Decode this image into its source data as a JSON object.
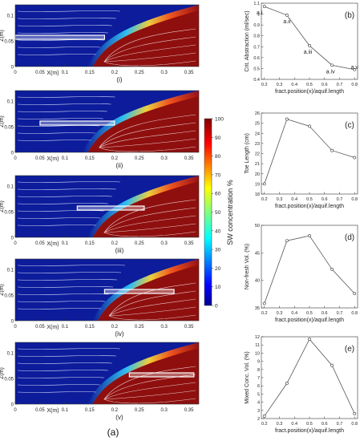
{
  "figure_label": "(a)",
  "colorbar": {
    "label": "SW concentration %",
    "ticks": [
      "100",
      "90",
      "80",
      "70",
      "60",
      "50",
      "40",
      "30",
      "20",
      "10",
      "0"
    ]
  },
  "contour_panels": [
    {
      "label": "(i)",
      "well": [
        0.0,
        0.18
      ]
    },
    {
      "label": "(ii)",
      "well": [
        0.05,
        0.2
      ]
    },
    {
      "label": "(iii)",
      "well": [
        0.125,
        0.26
      ]
    },
    {
      "label": "(iv)",
      "well": [
        0.18,
        0.32
      ]
    },
    {
      "label": "(v)",
      "well": [
        0.23,
        0.36
      ]
    }
  ],
  "contour_axes": {
    "xlabel": "X(m)",
    "ylabel": "Z(m)",
    "xticks": [
      "0",
      "0.05",
      "0.1",
      "0.15",
      "0.2",
      "0.25",
      "0.3",
      "0.35"
    ],
    "yticks": [
      "0",
      "0.05",
      "0.1"
    ]
  },
  "chart_data": [
    {
      "type": "line",
      "label": "(b)",
      "x": [
        0.2,
        0.35,
        0.5,
        0.65,
        0.8
      ],
      "y": [
        1.07,
        0.99,
        0.71,
        0.53,
        0.49
      ],
      "point_labels": [
        "a.i",
        "a.ii",
        "a.iii",
        "a.iv",
        "a.v"
      ],
      "xlabel": "fract.position(x)/aquif.length",
      "ylabel": "Crit. Abstraction (ml/sec)",
      "xticks": [
        "0.2",
        "0.3",
        "0.4",
        "0.5",
        "0.6",
        "0.7",
        "0.8"
      ],
      "ylim": [
        0.4,
        1.1
      ],
      "yticks": [
        "0.4",
        "0.5",
        "0.6",
        "0.7",
        "0.8",
        "0.9",
        "1",
        "1.1"
      ]
    },
    {
      "type": "line",
      "label": "(c)",
      "x": [
        0.2,
        0.35,
        0.5,
        0.65,
        0.8
      ],
      "y": [
        19.0,
        25.4,
        24.7,
        22.3,
        21.6
      ],
      "xlabel": "fract.position(x)/aquif.length",
      "ylabel": "Toe Length (cm)",
      "xticks": [
        "0.2",
        "0.3",
        "0.4",
        "0.5",
        "0.6",
        "0.7",
        "0.8"
      ],
      "ylim": [
        18,
        26
      ],
      "yticks": [
        "18",
        "19",
        "20",
        "21",
        "22",
        "23",
        "24",
        "25",
        "26"
      ]
    },
    {
      "type": "line",
      "label": "(d)",
      "x": [
        0.2,
        0.35,
        0.5,
        0.65,
        0.8
      ],
      "y": [
        35.8,
        47.2,
        48.1,
        42.0,
        37.6
      ],
      "xlabel": "fract.position(x)/aquif.length",
      "ylabel": "Non-fresh Vol. (%)",
      "xticks": [
        "0.2",
        "0.3",
        "0.4",
        "0.5",
        "0.6",
        "0.7",
        "0.8"
      ],
      "ylim": [
        35,
        50
      ],
      "yticks": [
        "35",
        "40",
        "45",
        "50"
      ]
    },
    {
      "type": "line",
      "label": "(e)",
      "x": [
        0.2,
        0.35,
        0.5,
        0.65,
        0.8
      ],
      "y": [
        2.3,
        6.3,
        11.7,
        8.5,
        2.6
      ],
      "xlabel": "fract.position(x)/aquif.length",
      "ylabel": "Mixed Conc. Vol. (%)",
      "xticks": [
        "0.2",
        "0.3",
        "0.4",
        "0.5",
        "0.6",
        "0.7",
        "0.8"
      ],
      "ylim": [
        2,
        12
      ],
      "yticks": [
        "2",
        "3",
        "4",
        "5",
        "6",
        "7",
        "8",
        "9",
        "10",
        "11",
        "12"
      ]
    }
  ]
}
